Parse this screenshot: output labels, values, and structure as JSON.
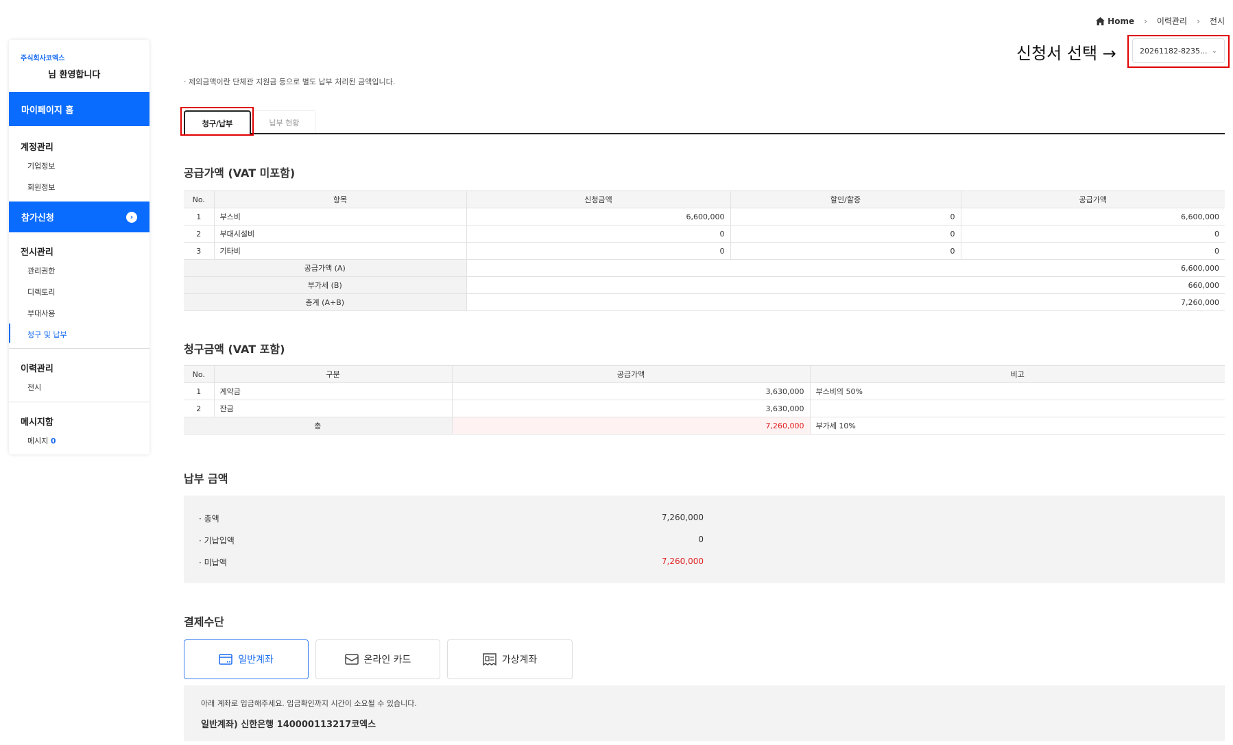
{
  "sidebar": {
    "company": "주식회사코엑스",
    "welcome": "님 환영합니다",
    "home": "마이페이지 홈",
    "account": {
      "title": "계정관리",
      "items": [
        "기업정보",
        "회원정보"
      ]
    },
    "apply": "참가신청",
    "exhibit": {
      "title": "전시관리",
      "items": [
        "관리권한",
        "디렉토리",
        "부대사용",
        "청구 및 납부"
      ]
    },
    "history": {
      "title": "이력관리",
      "items": [
        "전시"
      ]
    },
    "message": {
      "title": "메시지함",
      "item": "메시지",
      "count": "0"
    },
    "accent": "#0a6cff"
  },
  "breadcrumb": [
    "Home",
    "이력관리",
    "전시"
  ],
  "selector": {
    "label": "신청서 선택 →",
    "value": "20261182-8235..."
  },
  "note": "· 제외금액이란 단체관 지원금 등으로 별도 납부 처리된 금액입니다.",
  "tabs": [
    "청구/납부",
    "납부 현황"
  ],
  "supply": {
    "title": "공급가액 (VAT 미포함)",
    "headers": [
      "No.",
      "항목",
      "신청금액",
      "할인/할증",
      "공급가액"
    ],
    "rows": [
      [
        "1",
        "부스비",
        "6,600,000",
        "0",
        "6,600,000"
      ],
      [
        "2",
        "부대시설비",
        "0",
        "0",
        "0"
      ],
      [
        "3",
        "기타비",
        "0",
        "0",
        "0"
      ]
    ],
    "summary": [
      [
        "공급가액 (A)",
        "6,600,000"
      ],
      [
        "부가세 (B)",
        "660,000"
      ],
      [
        "총계 (A+B)",
        "7,260,000"
      ]
    ]
  },
  "billing": {
    "title": "청구금액 (VAT 포함)",
    "headers": [
      "No.",
      "구분",
      "공급가액",
      "비고"
    ],
    "rows": [
      [
        "1",
        "계약금",
        "3,630,000",
        "부스비의 50%"
      ],
      [
        "2",
        "잔금",
        "3,630,000",
        ""
      ]
    ],
    "total": [
      "총",
      "7,260,000",
      "부가세 10%"
    ]
  },
  "payment": {
    "title": "납부 금액",
    "rows": [
      [
        "· 총액",
        "7,260,000"
      ],
      [
        "· 기납입액",
        "0"
      ],
      [
        "· 미납액",
        "7,260,000"
      ]
    ]
  },
  "method": {
    "title": "결제수단",
    "options": [
      "일반계좌",
      "온라인 카드",
      "가상계좌"
    ],
    "selected": "일반계좌",
    "info": "아래 계좌로 입금해주세요. 입금확인까지 시간이 소요될 수 있습니다.",
    "account": "일반계좌) 신한은행 140000113217코엑스"
  }
}
